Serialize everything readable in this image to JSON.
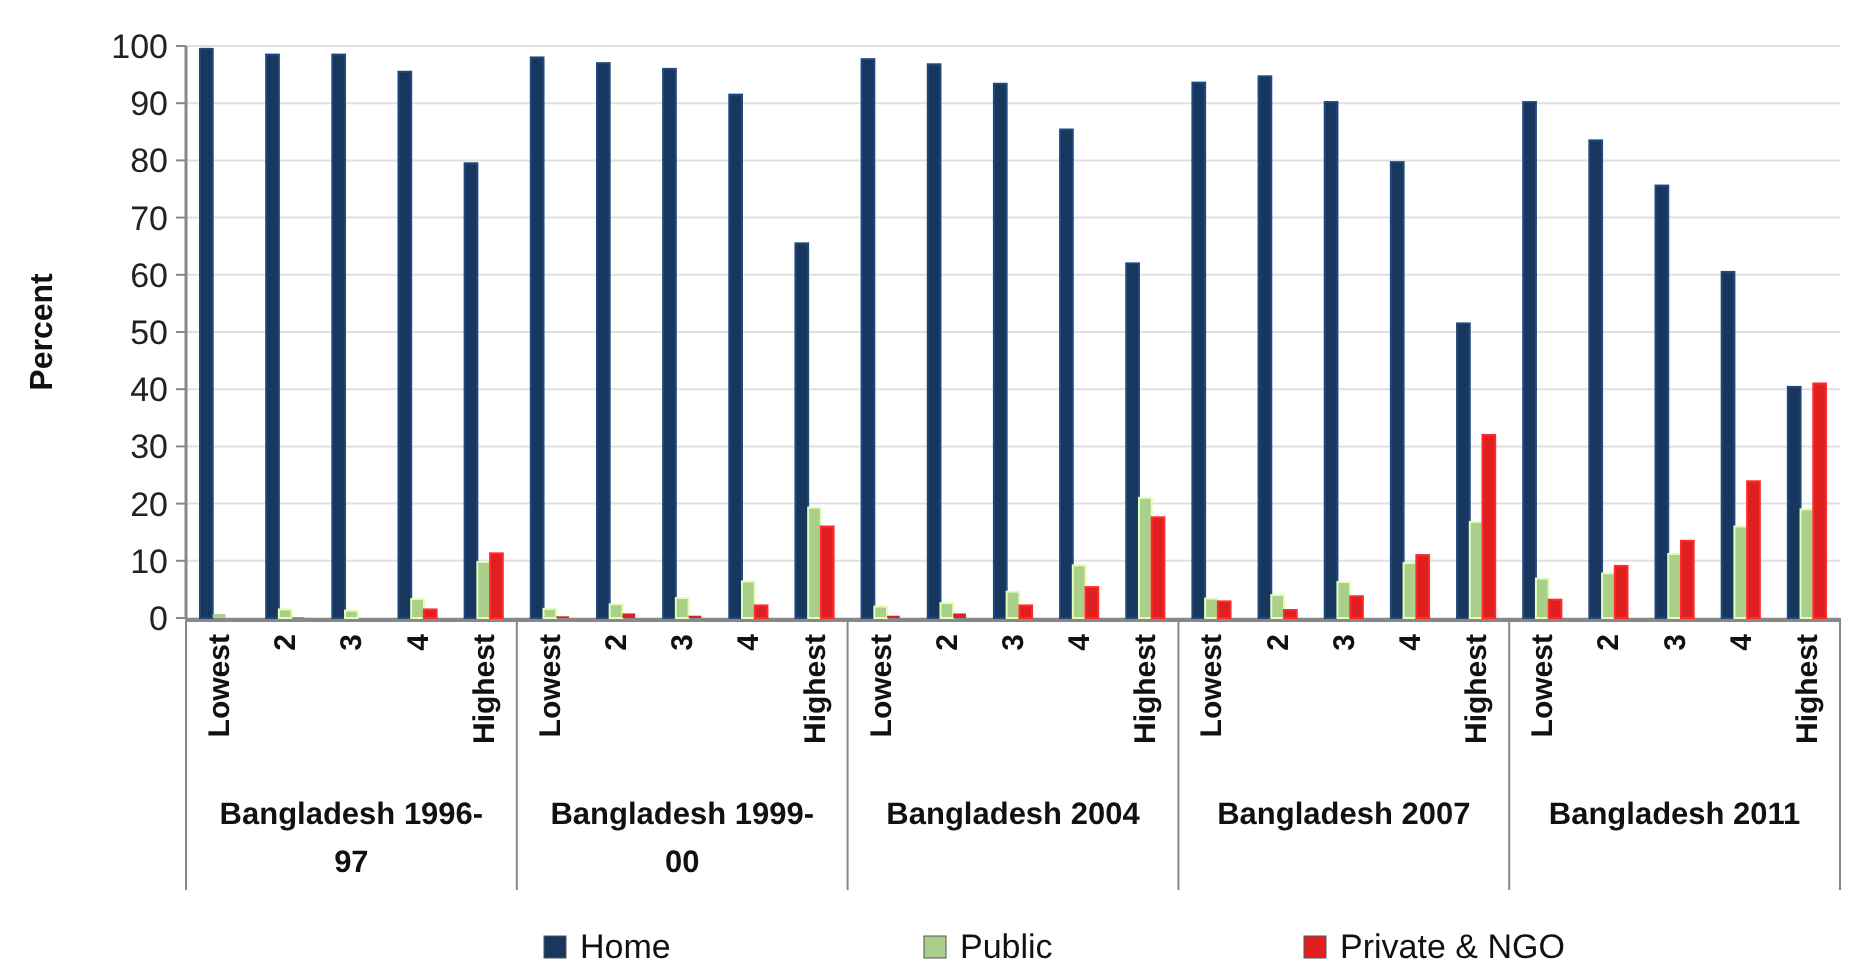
{
  "chart_data": {
    "type": "bar",
    "ylabel": "Percent",
    "categories": [
      "Lowest",
      "2",
      "3",
      "4",
      "Highest",
      "Lowest",
      "2",
      "3",
      "4",
      "Highest",
      "Lowest",
      "2",
      "3",
      "4",
      "Highest",
      "Lowest",
      "2",
      "3",
      "4",
      "Highest",
      "Lowest",
      "2",
      "3",
      "4",
      "Highest"
    ],
    "annotations": [
      "Bangladesh 1996-97",
      "Bangladesh 1999-00",
      "Bangladesh 2004",
      "Bangladesh 2007",
      "Bangladesh 2011"
    ],
    "series": [
      {
        "name": "Home",
        "color": "#17375e",
        "values": [
          99.5,
          98.5,
          98.5,
          95.5,
          79.5,
          98,
          97,
          96,
          91.5,
          65.5,
          97.7,
          96.8,
          93.4,
          85.4,
          62,
          93.6,
          94.7,
          90.2,
          79.7,
          51.5,
          90.2,
          83.5,
          75.6,
          60.5,
          40.4
        ]
      },
      {
        "name": "Public",
        "color": "#a9cf8a",
        "values": [
          0.7,
          1.5,
          1.3,
          3.3,
          9.8,
          1.6,
          2.4,
          3.5,
          6.4,
          19.3,
          2,
          2.6,
          4.6,
          9.2,
          21,
          3.4,
          4,
          6.3,
          9.6,
          16.8,
          6.9,
          7.8,
          11.2,
          16,
          19
        ]
      },
      {
        "name": "Private & NGO",
        "color": "#e02020",
        "values": [
          0,
          0.1,
          0,
          1.5,
          11.3,
          0.3,
          0.8,
          0.4,
          2.2,
          16,
          0.4,
          0.8,
          2.2,
          5.4,
          17.6,
          2.9,
          1.4,
          3.8,
          11,
          32,
          3.2,
          9.1,
          13.5,
          23.9,
          41
        ]
      }
    ],
    "ylim": [
      0,
      100
    ],
    "yticks": [
      0,
      10,
      20,
      30,
      40,
      50,
      60,
      70,
      80,
      90,
      100
    ],
    "grid": "y",
    "legend": "bottom"
  }
}
